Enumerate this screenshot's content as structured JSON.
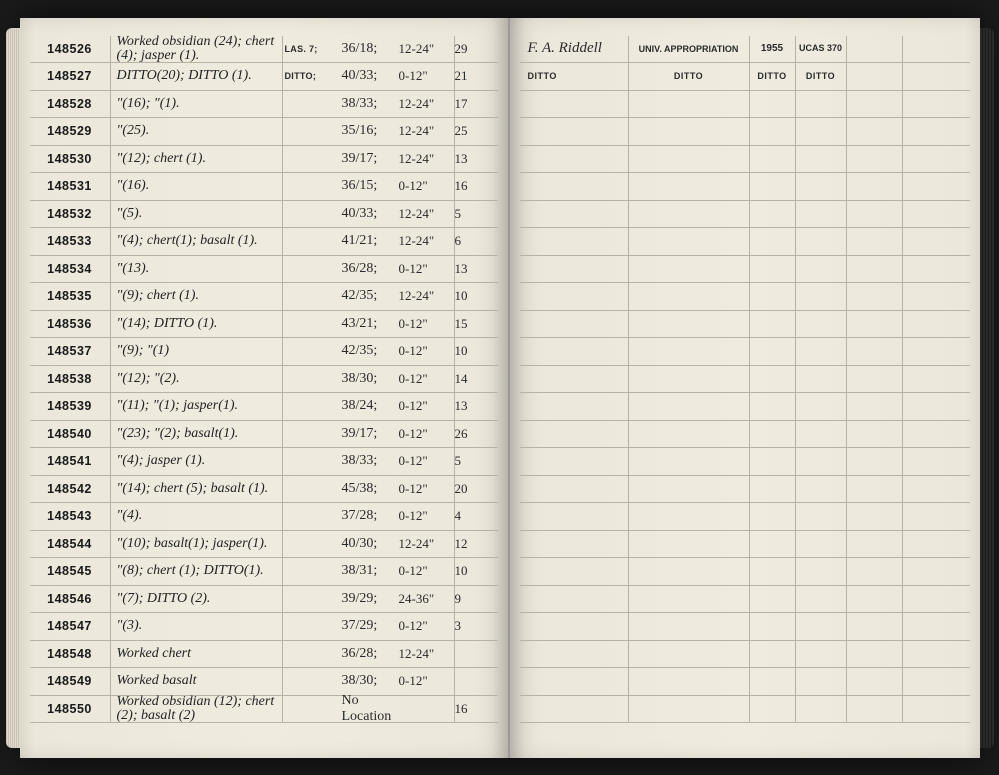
{
  "header_right": {
    "collector": "F. A. Riddell",
    "fund": "UNIV. APPROPRIATION",
    "year": "1955",
    "code": "UCAS 370"
  },
  "rows": [
    {
      "id": "148526",
      "desc": "Worked obsidian (24); chert (4); jasper (1).",
      "site": "LAS. 7;",
      "loc": "36/18;",
      "depth": "12-24\"",
      "ct": "29",
      "r1": "F. A. Riddell",
      "r2": "UNIV. APPROPRIATION",
      "r3": "1955",
      "r4": "UCAS 370"
    },
    {
      "id": "148527",
      "desc": "DITTO(20); DITTO (1).",
      "site": "DITTO;",
      "loc": "40/33;",
      "depth": "0-12\"",
      "ct": "21",
      "r1": "DITTO",
      "r2": "DITTO",
      "r3": "DITTO",
      "r4": "DITTO"
    },
    {
      "id": "148528",
      "desc": "\"(16); \"(1).",
      "site": "",
      "loc": "38/33;",
      "depth": "12-24\"",
      "ct": "17",
      "r1": "",
      "r2": "",
      "r3": "",
      "r4": ""
    },
    {
      "id": "148529",
      "desc": "\"(25).",
      "site": "",
      "loc": "35/16;",
      "depth": "12-24\"",
      "ct": "25",
      "r1": "",
      "r2": "",
      "r3": "",
      "r4": ""
    },
    {
      "id": "148530",
      "desc": "\"(12); chert (1).",
      "site": "",
      "loc": "39/17;",
      "depth": "12-24\"",
      "ct": "13",
      "r1": "",
      "r2": "",
      "r3": "",
      "r4": ""
    },
    {
      "id": "148531",
      "desc": "\"(16).",
      "site": "",
      "loc": "36/15;",
      "depth": "0-12\"",
      "ct": "16",
      "r1": "",
      "r2": "",
      "r3": "",
      "r4": ""
    },
    {
      "id": "148532",
      "desc": "\"(5).",
      "site": "",
      "loc": "40/33;",
      "depth": "12-24\"",
      "ct": "5",
      "r1": "",
      "r2": "",
      "r3": "",
      "r4": ""
    },
    {
      "id": "148533",
      "desc": "\"(4); chert(1); basalt (1).",
      "site": "",
      "loc": "41/21;",
      "depth": "12-24\"",
      "ct": "6",
      "r1": "",
      "r2": "",
      "r3": "",
      "r4": ""
    },
    {
      "id": "148534",
      "desc": "\"(13).",
      "site": "",
      "loc": "36/28;",
      "depth": "0-12\"",
      "ct": "13",
      "r1": "",
      "r2": "",
      "r3": "",
      "r4": ""
    },
    {
      "id": "148535",
      "desc": "\"(9); chert (1).",
      "site": "",
      "loc": "42/35;",
      "depth": "12-24\"",
      "ct": "10",
      "r1": "",
      "r2": "",
      "r3": "",
      "r4": ""
    },
    {
      "id": "148536",
      "desc": "\"(14); DITTO (1).",
      "site": "",
      "loc": "43/21;",
      "depth": "0-12\"",
      "ct": "15",
      "r1": "",
      "r2": "",
      "r3": "",
      "r4": ""
    },
    {
      "id": "148537",
      "desc": "\"(9); \"(1)",
      "site": "",
      "loc": "42/35;",
      "depth": "0-12\"",
      "ct": "10",
      "r1": "",
      "r2": "",
      "r3": "",
      "r4": ""
    },
    {
      "id": "148538",
      "desc": "\"(12); \"(2).",
      "site": "",
      "loc": "38/30;",
      "depth": "0-12\"",
      "ct": "14",
      "r1": "",
      "r2": "",
      "r3": "",
      "r4": ""
    },
    {
      "id": "148539",
      "desc": "\"(11); \"(1); jasper(1).",
      "site": "",
      "loc": "38/24;",
      "depth": "0-12\"",
      "ct": "13",
      "r1": "",
      "r2": "",
      "r3": "",
      "r4": ""
    },
    {
      "id": "148540",
      "desc": "\"(23); \"(2); basalt(1).",
      "site": "",
      "loc": "39/17;",
      "depth": "0-12\"",
      "ct": "26",
      "r1": "",
      "r2": "",
      "r3": "",
      "r4": ""
    },
    {
      "id": "148541",
      "desc": "\"(4); jasper (1).",
      "site": "",
      "loc": "38/33;",
      "depth": "0-12\"",
      "ct": "5",
      "r1": "",
      "r2": "",
      "r3": "",
      "r4": ""
    },
    {
      "id": "148542",
      "desc": "\"(14); chert (5); basalt (1).",
      "site": "",
      "loc": "45/38;",
      "depth": "0-12\"",
      "ct": "20",
      "r1": "",
      "r2": "",
      "r3": "",
      "r4": ""
    },
    {
      "id": "148543",
      "desc": "\"(4).",
      "site": "",
      "loc": "37/28;",
      "depth": "0-12\"",
      "ct": "4",
      "r1": "",
      "r2": "",
      "r3": "",
      "r4": ""
    },
    {
      "id": "148544",
      "desc": "\"(10); basalt(1); jasper(1).",
      "site": "",
      "loc": "40/30;",
      "depth": "12-24\"",
      "ct": "12",
      "r1": "",
      "r2": "",
      "r3": "",
      "r4": ""
    },
    {
      "id": "148545",
      "desc": "\"(8); chert (1); DITTO(1).",
      "site": "",
      "loc": "38/31;",
      "depth": "0-12\"",
      "ct": "10",
      "r1": "",
      "r2": "",
      "r3": "",
      "r4": ""
    },
    {
      "id": "148546",
      "desc": "\"(7); DITTO (2).",
      "site": "",
      "loc": "39/29;",
      "depth": "24-36\"",
      "ct": "9",
      "r1": "",
      "r2": "",
      "r3": "",
      "r4": ""
    },
    {
      "id": "148547",
      "desc": "\"(3).",
      "site": "",
      "loc": "37/29;",
      "depth": "0-12\"",
      "ct": "3",
      "r1": "",
      "r2": "",
      "r3": "",
      "r4": ""
    },
    {
      "id": "148548",
      "desc": "Worked chert",
      "site": "",
      "loc": "36/28;",
      "depth": "12-24\"",
      "ct": "",
      "r1": "",
      "r2": "",
      "r3": "",
      "r4": ""
    },
    {
      "id": "148549",
      "desc": "Worked basalt",
      "site": "",
      "loc": "38/30;",
      "depth": "0-12\"",
      "ct": "",
      "r1": "",
      "r2": "",
      "r3": "",
      "r4": ""
    },
    {
      "id": "148550",
      "desc": "Worked obsidian (12); chert (2); basalt (2)",
      "site": "",
      "loc": "No Location",
      "depth": "",
      "ct": "16",
      "r1": "",
      "r2": "",
      "r3": "",
      "r4": ""
    }
  ]
}
